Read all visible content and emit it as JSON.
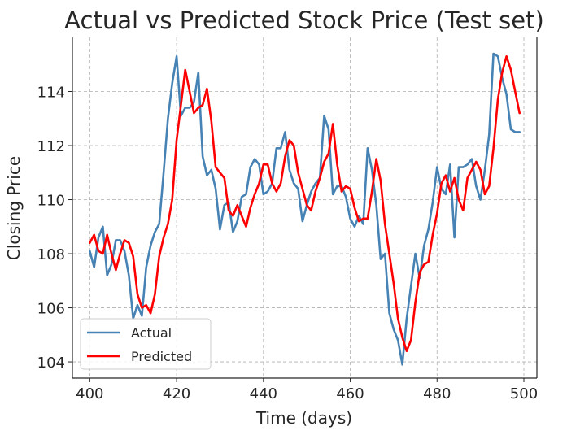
{
  "chart_data": {
    "type": "line",
    "title": "Actual vs Predicted Stock Price (Test set)",
    "xlabel": "Time (days)",
    "ylabel": "Closing Price",
    "xlim": [
      396,
      503
    ],
    "ylim": [
      103.4,
      116.0
    ],
    "xticks": [
      400,
      420,
      440,
      460,
      480,
      500
    ],
    "yticks": [
      104,
      106,
      108,
      110,
      112,
      114
    ],
    "grid": true,
    "legend_position": "lower-left",
    "x": [
      400,
      401,
      402,
      403,
      404,
      405,
      406,
      407,
      408,
      409,
      410,
      411,
      412,
      413,
      414,
      415,
      416,
      417,
      418,
      419,
      420,
      421,
      422,
      423,
      424,
      425,
      426,
      427,
      428,
      429,
      430,
      431,
      432,
      433,
      434,
      435,
      436,
      437,
      438,
      439,
      440,
      441,
      442,
      443,
      444,
      445,
      446,
      447,
      448,
      449,
      450,
      451,
      452,
      453,
      454,
      455,
      456,
      457,
      458,
      459,
      460,
      461,
      462,
      463,
      464,
      465,
      466,
      467,
      468,
      469,
      470,
      471,
      472,
      473,
      474,
      475,
      476,
      477,
      478,
      479,
      480,
      481,
      482,
      483,
      484,
      485,
      486,
      487,
      488,
      489,
      490,
      491,
      492,
      493,
      494,
      495,
      496,
      497,
      498,
      499
    ],
    "series": [
      {
        "name": "Actual",
        "color": "#4682b4",
        "values": [
          108.1,
          107.5,
          108.6,
          109.0,
          107.2,
          107.6,
          108.5,
          108.5,
          108.1,
          107.2,
          105.6,
          106.1,
          105.7,
          107.5,
          108.3,
          108.8,
          109.1,
          111.0,
          113.0,
          114.3,
          115.3,
          113.1,
          113.4,
          113.4,
          113.6,
          114.7,
          111.6,
          110.9,
          111.1,
          110.4,
          108.9,
          109.8,
          109.9,
          108.8,
          109.2,
          110.1,
          110.2,
          111.2,
          111.5,
          111.3,
          110.2,
          110.3,
          110.6,
          111.9,
          111.9,
          112.5,
          111.1,
          110.6,
          110.4,
          109.2,
          109.8,
          110.3,
          110.6,
          110.8,
          113.1,
          112.6,
          110.2,
          110.5,
          110.5,
          110.1,
          109.3,
          109.0,
          109.4,
          109.1,
          111.9,
          111.1,
          109.8,
          107.8,
          108.0,
          105.8,
          105.2,
          104.8,
          103.9,
          105.6,
          106.8,
          108.0,
          107.1,
          108.3,
          108.9,
          109.9,
          111.2,
          110.4,
          110.2,
          111.3,
          108.6,
          111.2,
          111.2,
          111.3,
          111.5,
          110.5,
          110.0,
          111.1,
          112.4,
          115.4,
          115.3,
          114.5,
          113.9,
          112.6,
          112.5,
          112.5
        ]
      },
      {
        "name": "Predicted",
        "color": "#ff0000",
        "values": [
          108.4,
          108.7,
          108.1,
          108.0,
          108.7,
          108.0,
          107.4,
          108.0,
          108.5,
          108.4,
          107.9,
          106.5,
          106.0,
          106.1,
          105.8,
          106.5,
          107.9,
          108.6,
          109.1,
          110.0,
          112.2,
          113.5,
          114.8,
          114.0,
          113.2,
          113.4,
          113.5,
          114.1,
          112.9,
          111.2,
          111.0,
          110.8,
          109.6,
          109.4,
          109.8,
          109.4,
          109.0,
          109.7,
          110.2,
          110.6,
          111.3,
          111.3,
          110.6,
          110.3,
          110.6,
          111.6,
          112.2,
          112.0,
          111.0,
          110.4,
          109.8,
          109.6,
          110.3,
          110.8,
          111.4,
          111.7,
          112.8,
          111.3,
          110.3,
          110.5,
          110.4,
          109.7,
          109.2,
          109.3,
          109.3,
          110.3,
          111.5,
          110.7,
          109.1,
          108.0,
          106.9,
          105.6,
          104.9,
          104.4,
          104.8,
          106.2,
          107.3,
          107.6,
          107.7,
          108.7,
          109.5,
          110.6,
          110.9,
          110.3,
          110.8,
          110.0,
          109.6,
          110.8,
          111.1,
          111.4,
          111.1,
          110.2,
          110.5,
          111.9,
          113.7,
          114.7,
          115.3,
          114.8,
          114.0,
          113.2
        ]
      }
    ]
  }
}
